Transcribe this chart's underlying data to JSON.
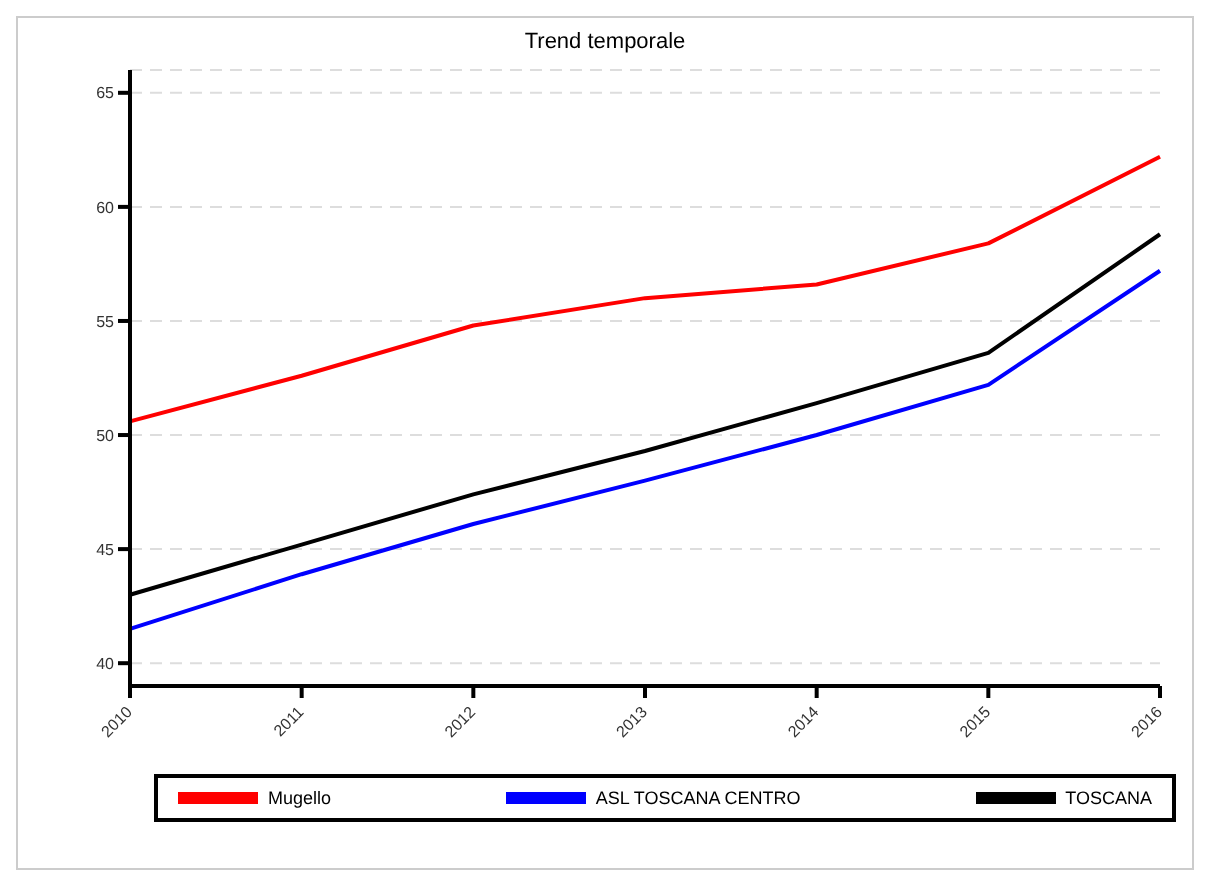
{
  "chart_data": {
    "type": "line",
    "title": "Trend temporale",
    "categories": [
      "2010",
      "2011",
      "2012",
      "2013",
      "2014",
      "2015",
      "2016"
    ],
    "series": [
      {
        "name": "Mugello",
        "color": "#ff0000",
        "values": [
          50.6,
          52.6,
          54.8,
          56.0,
          56.6,
          58.4,
          62.2
        ]
      },
      {
        "name": "ASL TOSCANA CENTRO",
        "color": "#0000ff",
        "values": [
          41.5,
          43.9,
          46.1,
          48.0,
          50.0,
          52.2,
          57.2
        ]
      },
      {
        "name": "TOSCANA",
        "color": "#000000",
        "values": [
          43.0,
          45.2,
          47.4,
          49.3,
          51.4,
          53.6,
          58.8
        ]
      }
    ],
    "ylim": [
      39,
      66
    ],
    "yticks": [
      40,
      45,
      50,
      55,
      60,
      65
    ],
    "grid": "y",
    "legend": "bottom",
    "marker": "none",
    "line_style": "solid"
  }
}
